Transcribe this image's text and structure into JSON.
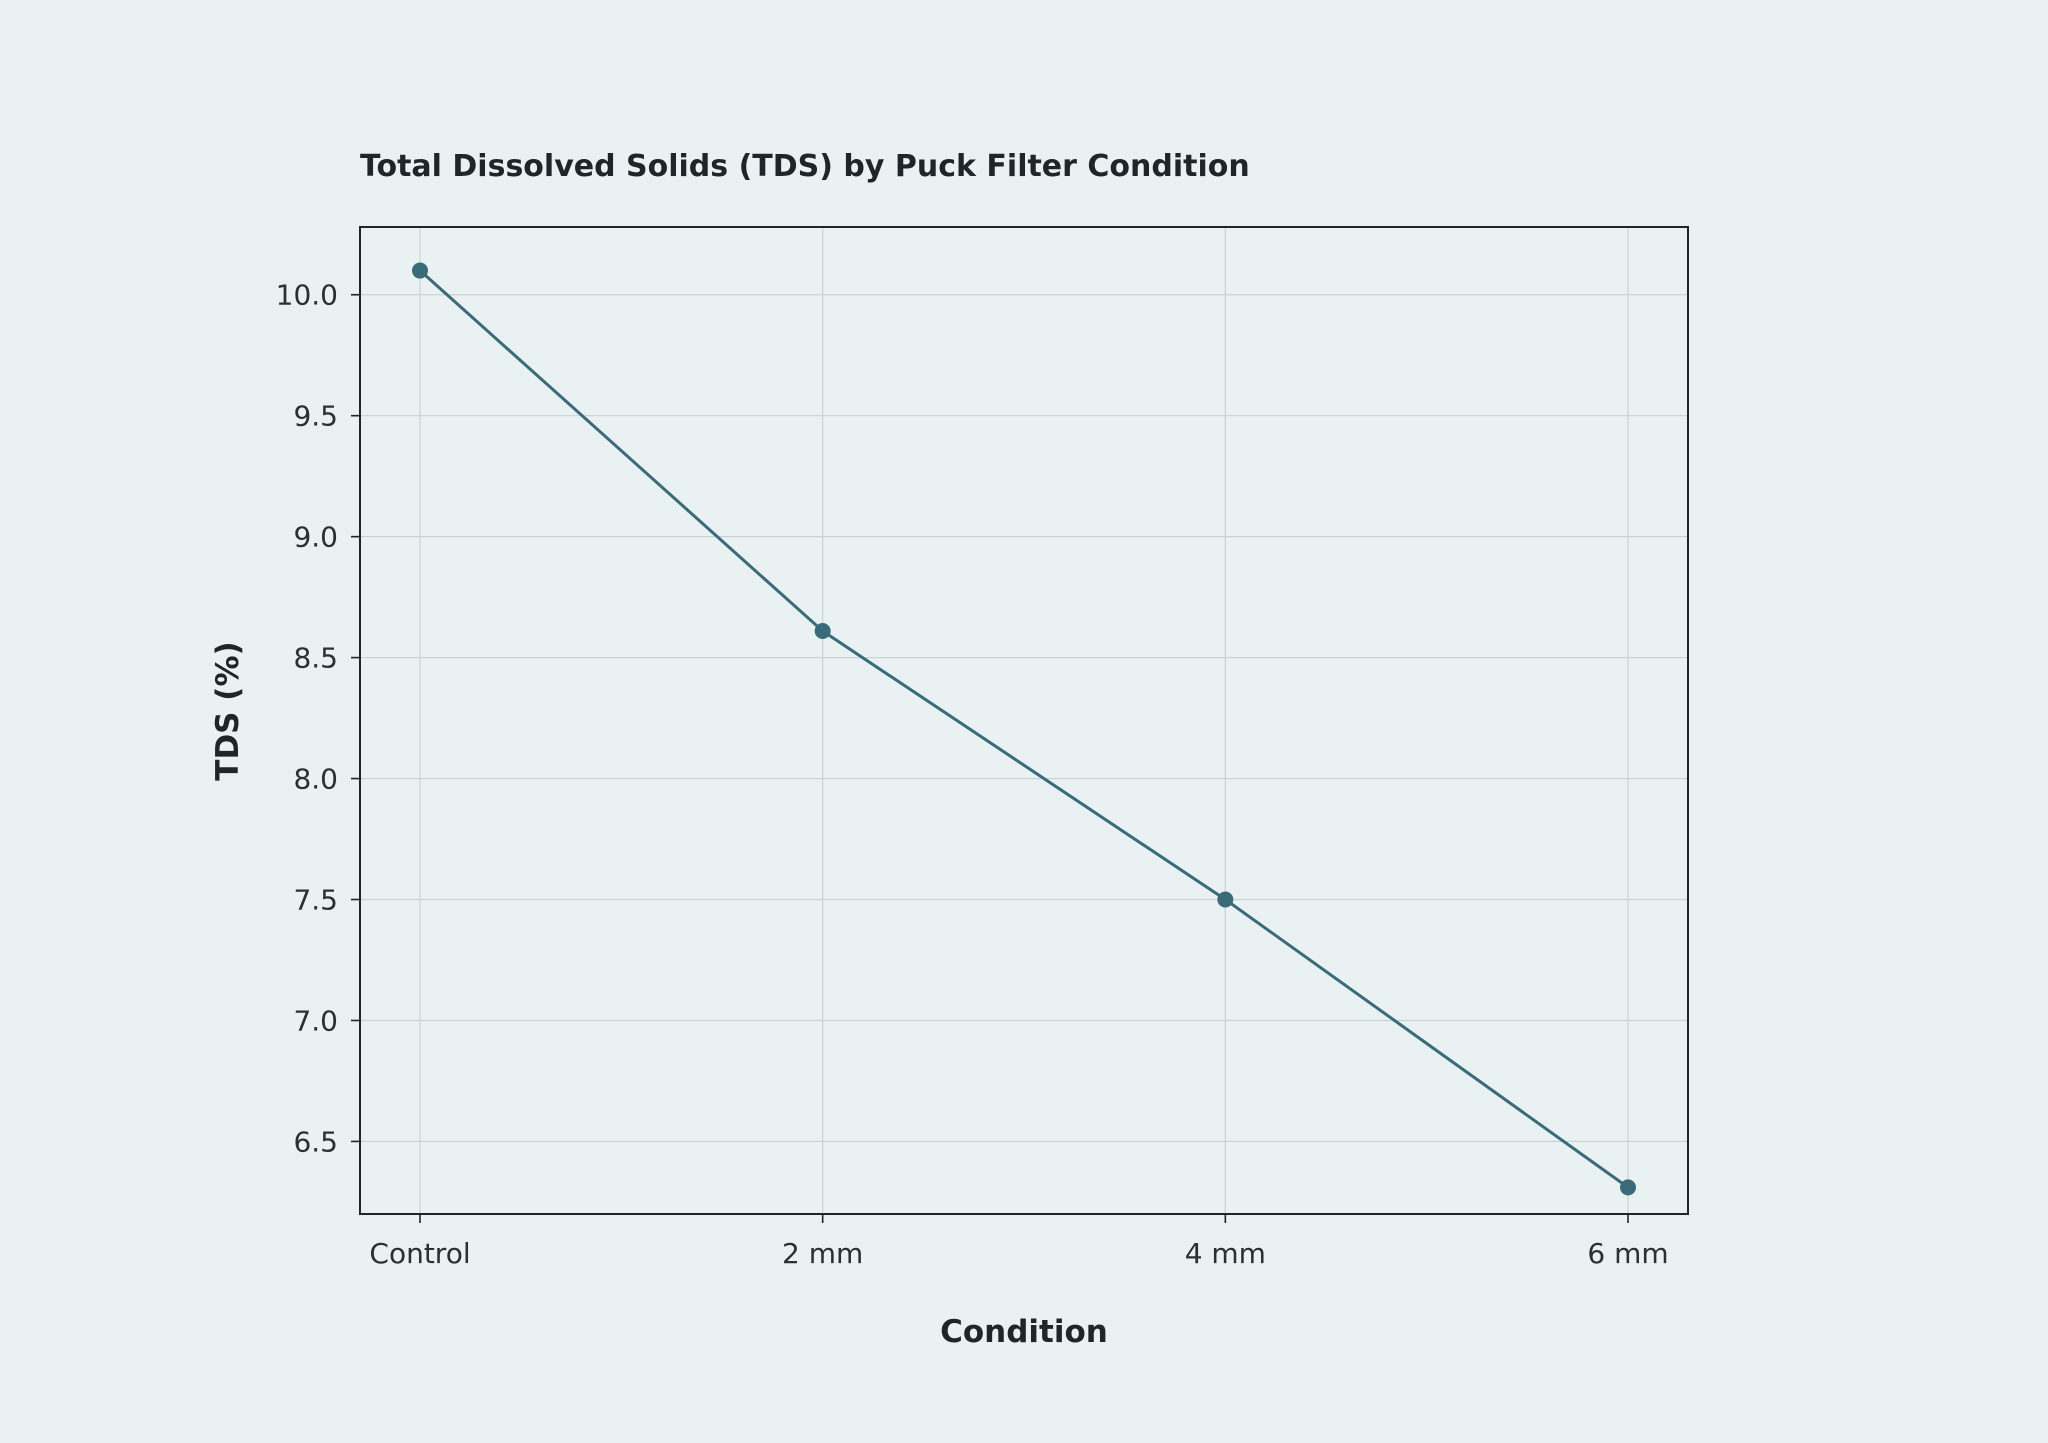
{
  "chart_data": {
    "type": "line",
    "title": "Total Dissolved Solids (TDS) by Puck Filter Condition",
    "xlabel": "Condition",
    "ylabel": "TDS (%)",
    "categories": [
      "Control",
      "2 mm",
      "4 mm",
      "6 mm"
    ],
    "series": [
      {
        "values": [
          10.1,
          8.61,
          7.5,
          6.31
        ],
        "color": "#3a6b78"
      }
    ],
    "ylim": [
      6.2,
      10.28
    ],
    "yticks": [
      6.5,
      7.0,
      7.5,
      8.0,
      8.5,
      9.0,
      9.5,
      10.0
    ],
    "ytick_labels": [
      "6.5",
      "7.0",
      "7.5",
      "8.0",
      "8.5",
      "9.0",
      "9.5",
      "10.0"
    ],
    "grid": true,
    "markers": true
  }
}
